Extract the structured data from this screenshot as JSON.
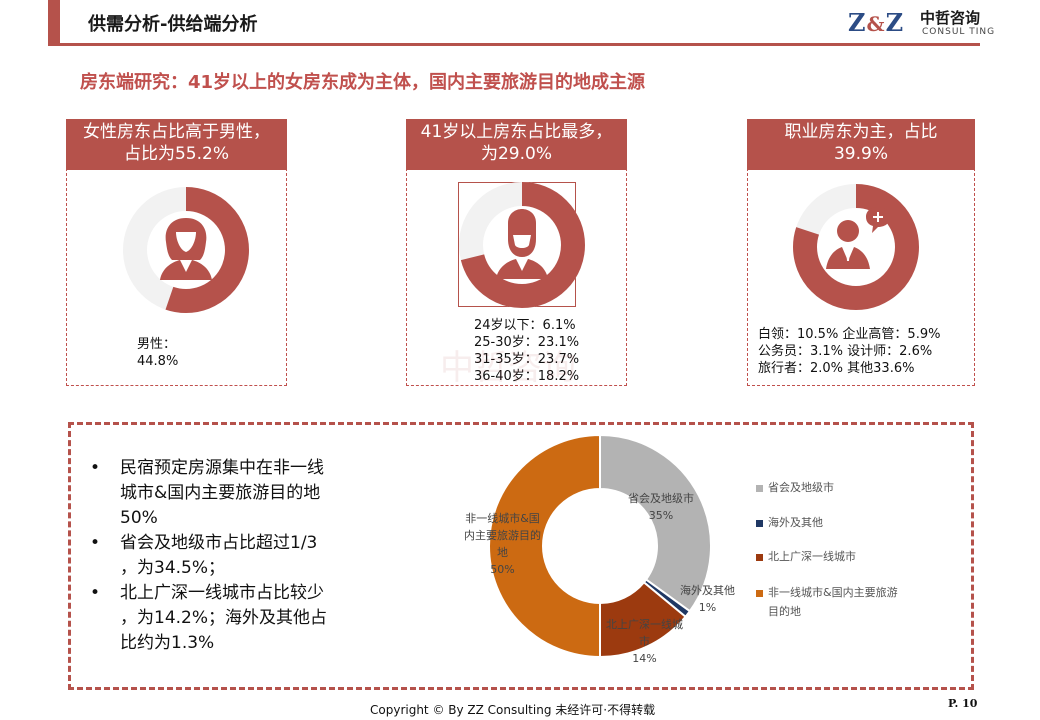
{
  "header": {
    "title": "供需分析-供给端分析",
    "logo_mark_left": "Z",
    "logo_mark_amp": "&",
    "logo_mark_right": "Z",
    "logo_cn": "中哲咨询",
    "logo_en": "CONSUL TING"
  },
  "subtitle": "房东端研究：41岁以上的女房东成为主体，国内主要旅游目的地成主源",
  "cards": [
    {
      "title_line1": "女性房东占比高于男性，",
      "title_line2": "占比为55.2%",
      "icon": "female-user-icon",
      "ring_fraction": 0.552,
      "notes": [
        "男性：",
        "44.8%"
      ]
    },
    {
      "title_line1": "41岁以上房东占比最多，",
      "title_line2": "为29.0%",
      "icon": "male-beard-user-icon",
      "ring_fraction": 0.71,
      "notes": [
        "24岁以下：6.1%",
        "25-30岁：23.1%",
        "31-35岁：23.7%",
        "36-40岁：18.2%"
      ]
    },
    {
      "title_line1": "职业房东为主，占比",
      "title_line2": "39.9%",
      "icon": "businessman-chat-icon",
      "ring_fraction": 0.8,
      "notes": [
        "白领：10.5%    企业高管：5.9%",
        "公务员：3.1%  设计师：2.6%",
        "旅行者：2.0%   其他33.6%"
      ]
    }
  ],
  "bullets": [
    [
      "民宿预定房源集中在非一线",
      "城市&国内主要旅游目的地",
      "50%"
    ],
    [
      "省会及地级市占比超过1/3",
      "，为34.5%；"
    ],
    [
      "北上广深一线城市占比较少",
      "，为14.2%；海外及其他占",
      "比约为1.3%"
    ]
  ],
  "chart_data": {
    "type": "pie",
    "donut": true,
    "title": "",
    "categories": [
      "省会及地级市",
      "海外及其他",
      "北上广深一线城市",
      "非一线城市&国内主要旅游目的地"
    ],
    "values": [
      35,
      1,
      14,
      50
    ],
    "colors": [
      "#b3b3b3",
      "#1f3864",
      "#9c3a0f",
      "#cc6a12"
    ],
    "data_labels": [
      [
        "省会及地级市",
        "35%"
      ],
      [
        "海外及其他",
        "1%"
      ],
      [
        "北上广深一线城",
        "市",
        "14%"
      ],
      [
        "非一线城市&国",
        "内主要旅游目的",
        "地",
        "50%"
      ]
    ],
    "legend": {
      "placement": "right",
      "entries": [
        [
          "省会及地级市"
        ],
        [
          "海外及其他"
        ],
        [
          "北上广深一线城市"
        ],
        [
          "非一线城市&国内主要旅游",
          "目的地"
        ]
      ]
    }
  },
  "watermark": "中哲咨询",
  "footer": {
    "copyright": "Copyright © By  ZZ Consulting        未经许可·不得转载",
    "page": "P. 10"
  },
  "colors": {
    "accent": "#b5524b",
    "subtitle": "#c0504d",
    "ring_light": "#f2f2f2",
    "ring_dark": "#b5524b"
  }
}
